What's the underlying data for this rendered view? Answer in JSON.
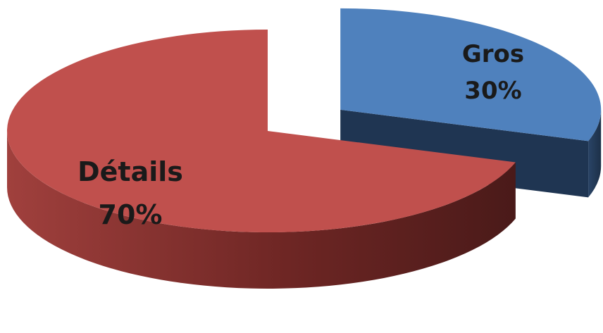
{
  "chart_data": {
    "type": "pie",
    "style": "3d-exploded",
    "title": "",
    "slices": [
      {
        "label": "Gros",
        "value": 30,
        "value_label": "30%",
        "color": "#4f81bd",
        "side_color": "#1f3552"
      },
      {
        "label": "Détails",
        "value": 70,
        "value_label": "70%",
        "color": "#c0504d",
        "side_color": "#5c1f1e"
      }
    ],
    "legend": "none",
    "data_labels": "inside"
  }
}
